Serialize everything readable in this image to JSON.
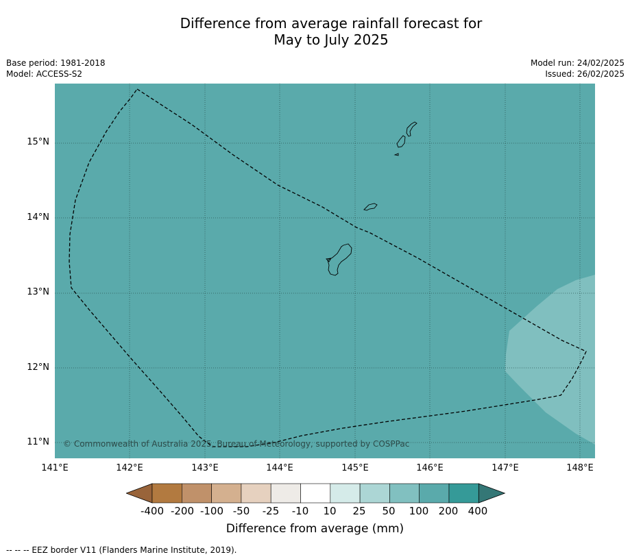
{
  "title_line1": "Difference from average rainfall forecast for",
  "title_line2": "May to July 2025",
  "meta_left": {
    "base_period": "Base period: 1981-2018",
    "model": "Model: ACCESS-S2"
  },
  "meta_right": {
    "model_run": "Model run: 24/02/2025",
    "issued": "Issued: 26/02/2025"
  },
  "map": {
    "lat_labels": [
      "15°N",
      "14°N",
      "13°N",
      "12°N",
      "11°N"
    ],
    "lon_labels": [
      "141°E",
      "142°E",
      "143°E",
      "144°E",
      "145°E",
      "146°E",
      "147°E",
      "148°E"
    ],
    "copyright": "© Commonwealth of Australia 2025, Bureau of Meteorology, supported by COSPPac",
    "colors": {
      "ocean_main": "#5aaaab",
      "ocean_light": "#80bfbf",
      "gridline": "#2d5554",
      "eez_line": "#000000"
    }
  },
  "colorbar": {
    "ticks": [
      "-400",
      "-200",
      "-100",
      "-50",
      "-25",
      "-10",
      "10",
      "25",
      "50",
      "100",
      "200",
      "400"
    ],
    "colors": [
      "#99643a",
      "#b27a40",
      "#c0916a",
      "#d4b08f",
      "#e6d1bf",
      "#eeebe7",
      "#ffffff",
      "#d5ebe9",
      "#acd6d5",
      "#81c0c0",
      "#5aaaab",
      "#359a98",
      "#347776"
    ],
    "label": "Difference from average (mm)"
  },
  "legend_note": "--  --  -- EEZ border V11 (Flanders Marine Institute, 2019)."
}
